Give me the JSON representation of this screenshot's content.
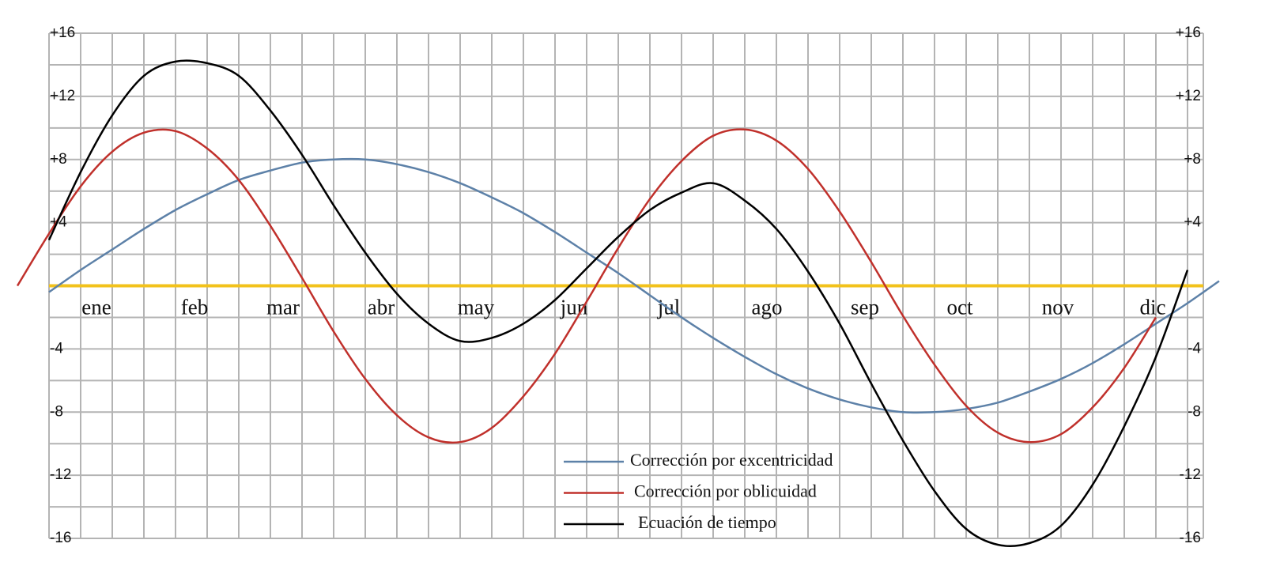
{
  "chart_data": {
    "type": "line",
    "x": [
      -10,
      0,
      10,
      20,
      30,
      40,
      50,
      60,
      70,
      80,
      90,
      100,
      110,
      120,
      130,
      140,
      150,
      160,
      170,
      180,
      190,
      200,
      210,
      220,
      230,
      240,
      250,
      260,
      270,
      280,
      290,
      300,
      310,
      320,
      330,
      340,
      350,
      360,
      370
    ],
    "xlim": [
      0,
      365
    ],
    "xticks": [
      {
        "value": 15,
        "label": "ene"
      },
      {
        "value": 46,
        "label": "feb"
      },
      {
        "value": 74,
        "label": "mar"
      },
      {
        "value": 105,
        "label": "abr"
      },
      {
        "value": 135,
        "label": "may"
      },
      {
        "value": 166,
        "label": "jun"
      },
      {
        "value": 196,
        "label": "jul"
      },
      {
        "value": 227,
        "label": "ago"
      },
      {
        "value": 258,
        "label": "sep"
      },
      {
        "value": 288,
        "label": "oct"
      },
      {
        "value": 319,
        "label": "nov"
      },
      {
        "value": 349,
        "label": "dic"
      }
    ],
    "ylim": [
      -16,
      16
    ],
    "yticks": [
      {
        "value": 16,
        "label": "+16"
      },
      {
        "value": 12,
        "label": "+12"
      },
      {
        "value": 8,
        "label": "+8"
      },
      {
        "value": 4,
        "label": "+4"
      },
      -4,
      -8,
      -12,
      -16
    ],
    "grid": true,
    "zero_line_color": "#f2c21b",
    "legend": "bottom-center",
    "series": [
      {
        "name": "Corrección por excentricidad",
        "color": "#5d81a8",
        "values": [
          null,
          -0.4,
          1.0,
          2.3,
          3.6,
          4.8,
          5.8,
          6.7,
          7.3,
          7.8,
          8.0,
          8.0,
          7.7,
          7.2,
          6.5,
          5.6,
          4.6,
          3.4,
          2.1,
          0.8,
          -0.6,
          -2.0,
          -3.3,
          -4.5,
          -5.6,
          -6.5,
          -7.2,
          -7.7,
          -8.0,
          -8.0,
          -7.8,
          -7.4,
          -6.7,
          -5.9,
          -4.9,
          -3.7,
          -2.4,
          -1.1,
          0.3
        ]
      },
      {
        "name": "Corrección por oblicuidad",
        "color": "#c0302b",
        "values": [
          0,
          3.3,
          6.3,
          8.5,
          9.7,
          9.8,
          8.7,
          6.7,
          3.8,
          0.5,
          -2.9,
          -5.9,
          -8.2,
          -9.6,
          -9.9,
          -9.0,
          -7.0,
          -4.3,
          -1.0,
          2.4,
          5.5,
          7.9,
          9.5,
          9.9,
          9.2,
          7.4,
          4.7,
          1.5,
          -1.9,
          -5.0,
          -7.6,
          -9.3,
          -9.9,
          -9.4,
          -7.7,
          -5.2,
          -2.0,
          null,
          null
        ]
      },
      {
        "name": "Ecuación de tiempo",
        "color": "#000000",
        "values": [
          null,
          2.9,
          7.2,
          10.8,
          13.3,
          14.2,
          14.1,
          13.3,
          11.1,
          8.3,
          5.1,
          2.1,
          -0.5,
          -2.4,
          -3.5,
          -3.3,
          -2.4,
          -0.9,
          1.1,
          3.1,
          4.8,
          5.9,
          6.5,
          5.4,
          3.6,
          0.9,
          -2.4,
          -6.2,
          -9.8,
          -13.0,
          -15.4,
          -16.4,
          -16.3,
          -15.2,
          -12.6,
          -8.9,
          -4.5,
          1.0,
          null
        ]
      }
    ]
  }
}
